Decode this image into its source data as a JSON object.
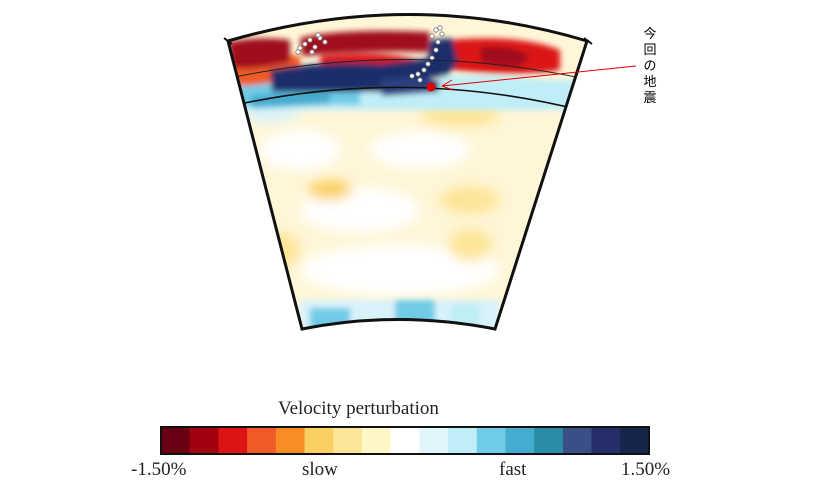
{
  "annotation": {
    "chars": [
      "今",
      "回",
      "の",
      "地",
      "震"
    ],
    "color": "#e00000"
  },
  "colorbar": {
    "title": "Velocity perturbation",
    "min_label": "-1.50%",
    "slow_label": "slow",
    "fast_label": "fast",
    "max_label": "1.50%",
    "range": [
      -1.5,
      1.5
    ],
    "colors": [
      "#6b0012",
      "#a00010",
      "#dc1414",
      "#f05a28",
      "#f78d23",
      "#fbd062",
      "#fde598",
      "#fff7c8",
      "#ffffff",
      "#e0f6fb",
      "#bfeef6",
      "#6fcbe6",
      "#44acd0",
      "#2a8da8",
      "#3a4f86",
      "#252e6a",
      "#15264a"
    ]
  },
  "section": {
    "background_color": "#fff6d8",
    "slab_color": "#1d2f6a",
    "hot_color": "#a0101a",
    "event_color": "#e00000"
  }
}
